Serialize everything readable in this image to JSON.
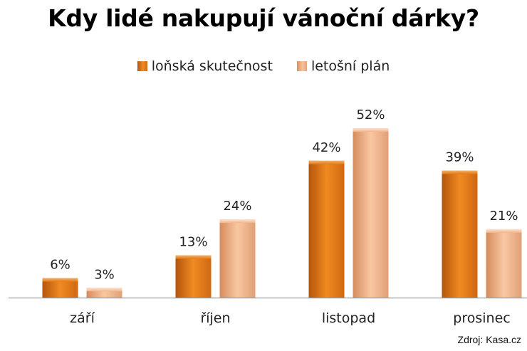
{
  "chart_data": {
    "type": "bar",
    "title": "Kdy lidé nakupují vánoční dárky?",
    "categories": [
      "září",
      "říjen",
      "listopad",
      "prosinec"
    ],
    "series": [
      {
        "name": "loňská skutečnost",
        "values": [
          6,
          13,
          42,
          39
        ],
        "labels": [
          "6%",
          "13%",
          "42%",
          "39%"
        ],
        "color": "#e87b1c"
      },
      {
        "name": "letošní plán",
        "values": [
          3,
          24,
          52,
          21
        ],
        "labels": [
          "3%",
          "24%",
          "52%",
          "21%"
        ],
        "color": "#f4b88e"
      }
    ],
    "ylim": [
      0,
      52
    ],
    "unit": "%",
    "grid": false,
    "legend": "top-center"
  },
  "source": "Zdroj: Kasa.cz"
}
